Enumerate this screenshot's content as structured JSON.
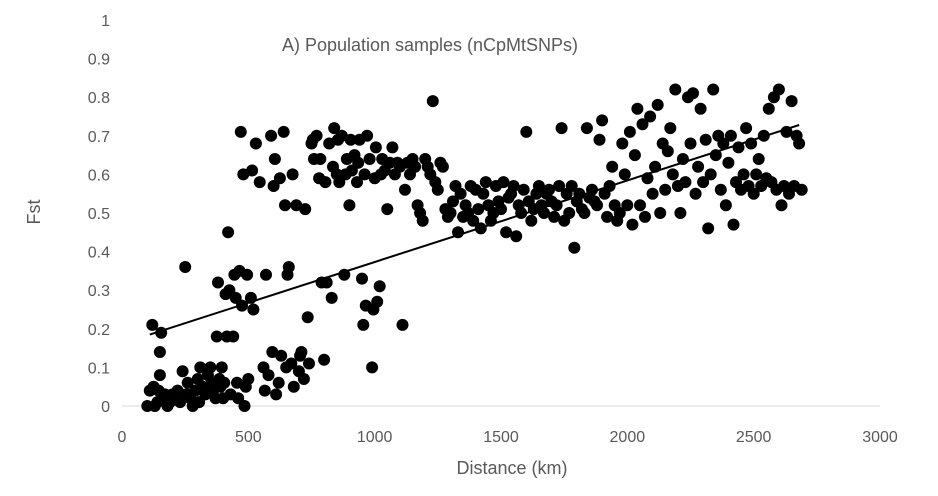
{
  "chart_data": {
    "type": "scatter",
    "title": "A) Population samples (nCpMtSNPs)",
    "xlabel": "Distance (km)",
    "ylabel": "Fst",
    "xlim": [
      0,
      3000
    ],
    "ylim": [
      0,
      1
    ],
    "x_ticks": [
      "0",
      "500",
      "1000",
      "1500",
      "2000",
      "2500",
      "3000"
    ],
    "y_ticks": [
      "0",
      "0.1",
      "0.2",
      "0.3",
      "0.4",
      "0.5",
      "0.6",
      "0.7",
      "0.8",
      "0.9",
      "1"
    ],
    "grid": false,
    "legend": "none",
    "marker_color": "#000000",
    "axis_color": "#d9d9d9",
    "trendline": {
      "type": "linear",
      "x": [
        110,
        2680
      ],
      "y": [
        0.185,
        0.728
      ]
    },
    "series": [
      {
        "points": [
          [
            100,
            0.0
          ],
          [
            110,
            0.04
          ],
          [
            120,
            0.21
          ],
          [
            125,
            0.05
          ],
          [
            130,
            0.0
          ],
          [
            140,
            0.01
          ],
          [
            145,
            0.04
          ],
          [
            150,
            0.08
          ],
          [
            150,
            0.14
          ],
          [
            155,
            0.19
          ],
          [
            160,
            0.02
          ],
          [
            170,
            0.03
          ],
          [
            180,
            0.0
          ],
          [
            190,
            0.01
          ],
          [
            200,
            0.03
          ],
          [
            210,
            0.02
          ],
          [
            220,
            0.04
          ],
          [
            230,
            0.01
          ],
          [
            240,
            0.09
          ],
          [
            250,
            0.36
          ],
          [
            255,
            0.03
          ],
          [
            260,
            0.06
          ],
          [
            270,
            0.02
          ],
          [
            280,
            0.0
          ],
          [
            290,
            0.04
          ],
          [
            300,
            0.07
          ],
          [
            305,
            0.01
          ],
          [
            310,
            0.1
          ],
          [
            320,
            0.05
          ],
          [
            330,
            0.03
          ],
          [
            340,
            0.08
          ],
          [
            350,
            0.1
          ],
          [
            355,
            0.06
          ],
          [
            360,
            0.04
          ],
          [
            370,
            0.02
          ],
          [
            375,
            0.18
          ],
          [
            380,
            0.32
          ],
          [
            385,
            0.07
          ],
          [
            390,
            0.05
          ],
          [
            395,
            0.1
          ],
          [
            400,
            0.02
          ],
          [
            405,
            0.06
          ],
          [
            410,
            0.29
          ],
          [
            415,
            0.18
          ],
          [
            420,
            0.45
          ],
          [
            425,
            0.3
          ],
          [
            430,
            0.03
          ],
          [
            440,
            0.18
          ],
          [
            445,
            0.34
          ],
          [
            450,
            0.28
          ],
          [
            455,
            0.06
          ],
          [
            460,
            0.02
          ],
          [
            465,
            0.35
          ],
          [
            470,
            0.71
          ],
          [
            475,
            0.26
          ],
          [
            480,
            0.6
          ],
          [
            485,
            0.0
          ],
          [
            490,
            0.05
          ],
          [
            495,
            0.34
          ],
          [
            500,
            0.07
          ],
          [
            510,
            0.28
          ],
          [
            515,
            0.61
          ],
          [
            520,
            0.25
          ],
          [
            530,
            0.68
          ],
          [
            545,
            0.58
          ],
          [
            560,
            0.1
          ],
          [
            565,
            0.04
          ],
          [
            570,
            0.34
          ],
          [
            580,
            0.08
          ],
          [
            590,
            0.7
          ],
          [
            595,
            0.14
          ],
          [
            600,
            0.57
          ],
          [
            605,
            0.64
          ],
          [
            610,
            0.03
          ],
          [
            620,
            0.06
          ],
          [
            625,
            0.59
          ],
          [
            630,
            0.13
          ],
          [
            640,
            0.71
          ],
          [
            645,
            0.52
          ],
          [
            650,
            0.1
          ],
          [
            655,
            0.34
          ],
          [
            660,
            0.36
          ],
          [
            670,
            0.11
          ],
          [
            675,
            0.6
          ],
          [
            680,
            0.05
          ],
          [
            690,
            0.52
          ],
          [
            700,
            0.09
          ],
          [
            705,
            0.13
          ],
          [
            710,
            0.14
          ],
          [
            720,
            0.07
          ],
          [
            725,
            0.51
          ],
          [
            735,
            0.23
          ],
          [
            740,
            0.11
          ],
          [
            750,
            0.68
          ],
          [
            755,
            0.69
          ],
          [
            760,
            0.64
          ],
          [
            770,
            0.7
          ],
          [
            780,
            0.59
          ],
          [
            785,
            0.64
          ],
          [
            790,
            0.32
          ],
          [
            800,
            0.12
          ],
          [
            805,
            0.58
          ],
          [
            810,
            0.32
          ],
          [
            820,
            0.68
          ],
          [
            830,
            0.28
          ],
          [
            835,
            0.62
          ],
          [
            840,
            0.72
          ],
          [
            850,
            0.6
          ],
          [
            855,
            0.69
          ],
          [
            860,
            0.58
          ],
          [
            870,
            0.7
          ],
          [
            880,
            0.34
          ],
          [
            885,
            0.6
          ],
          [
            890,
            0.64
          ],
          [
            900,
            0.52
          ],
          [
            905,
            0.69
          ],
          [
            910,
            0.61
          ],
          [
            920,
            0.65
          ],
          [
            930,
            0.58
          ],
          [
            935,
            0.63
          ],
          [
            940,
            0.69
          ],
          [
            950,
            0.33
          ],
          [
            955,
            0.21
          ],
          [
            960,
            0.6
          ],
          [
            965,
            0.26
          ],
          [
            970,
            0.7
          ],
          [
            980,
            0.64
          ],
          [
            990,
            0.1
          ],
          [
            995,
            0.25
          ],
          [
            1000,
            0.59
          ],
          [
            1005,
            0.67
          ],
          [
            1010,
            0.27
          ],
          [
            1020,
            0.31
          ],
          [
            1025,
            0.6
          ],
          [
            1030,
            0.64
          ],
          [
            1040,
            0.61
          ],
          [
            1050,
            0.51
          ],
          [
            1060,
            0.63
          ],
          [
            1070,
            0.67
          ],
          [
            1080,
            0.6
          ],
          [
            1090,
            0.63
          ],
          [
            1100,
            0.62
          ],
          [
            1110,
            0.21
          ],
          [
            1120,
            0.56
          ],
          [
            1130,
            0.63
          ],
          [
            1140,
            0.6
          ],
          [
            1150,
            0.64
          ],
          [
            1160,
            0.62
          ],
          [
            1170,
            0.52
          ],
          [
            1180,
            0.5
          ],
          [
            1190,
            0.48
          ],
          [
            1200,
            0.64
          ],
          [
            1210,
            0.62
          ],
          [
            1220,
            0.6
          ],
          [
            1230,
            0.79
          ],
          [
            1240,
            0.58
          ],
          [
            1250,
            0.56
          ],
          [
            1260,
            0.63
          ],
          [
            1270,
            0.62
          ],
          [
            1280,
            0.51
          ],
          [
            1290,
            0.49
          ],
          [
            1300,
            0.5
          ],
          [
            1310,
            0.53
          ],
          [
            1320,
            0.57
          ],
          [
            1330,
            0.45
          ],
          [
            1340,
            0.55
          ],
          [
            1350,
            0.49
          ],
          [
            1360,
            0.52
          ],
          [
            1370,
            0.5
          ],
          [
            1380,
            0.57
          ],
          [
            1390,
            0.48
          ],
          [
            1400,
            0.56
          ],
          [
            1410,
            0.51
          ],
          [
            1420,
            0.46
          ],
          [
            1430,
            0.55
          ],
          [
            1440,
            0.58
          ],
          [
            1450,
            0.52
          ],
          [
            1460,
            0.48
          ],
          [
            1470,
            0.5
          ],
          [
            1480,
            0.57
          ],
          [
            1490,
            0.53
          ],
          [
            1500,
            0.51
          ],
          [
            1510,
            0.58
          ],
          [
            1520,
            0.45
          ],
          [
            1530,
            0.54
          ],
          [
            1540,
            0.55
          ],
          [
            1550,
            0.57
          ],
          [
            1560,
            0.44
          ],
          [
            1570,
            0.52
          ],
          [
            1580,
            0.5
          ],
          [
            1590,
            0.56
          ],
          [
            1600,
            0.71
          ],
          [
            1610,
            0.53
          ],
          [
            1620,
            0.48
          ],
          [
            1630,
            0.51
          ],
          [
            1640,
            0.55
          ],
          [
            1650,
            0.57
          ],
          [
            1660,
            0.52
          ],
          [
            1670,
            0.5
          ],
          [
            1680,
            0.55
          ],
          [
            1690,
            0.56
          ],
          [
            1700,
            0.53
          ],
          [
            1710,
            0.49
          ],
          [
            1720,
            0.52
          ],
          [
            1730,
            0.57
          ],
          [
            1740,
            0.72
          ],
          [
            1750,
            0.48
          ],
          [
            1760,
            0.55
          ],
          [
            1770,
            0.5
          ],
          [
            1780,
            0.57
          ],
          [
            1790,
            0.41
          ],
          [
            1800,
            0.53
          ],
          [
            1810,
            0.55
          ],
          [
            1820,
            0.51
          ],
          [
            1830,
            0.5
          ],
          [
            1840,
            0.72
          ],
          [
            1850,
            0.54
          ],
          [
            1860,
            0.56
          ],
          [
            1870,
            0.53
          ],
          [
            1880,
            0.52
          ],
          [
            1890,
            0.69
          ],
          [
            1900,
            0.74
          ],
          [
            1910,
            0.55
          ],
          [
            1920,
            0.49
          ],
          [
            1930,
            0.57
          ],
          [
            1940,
            0.62
          ],
          [
            1950,
            0.52
          ],
          [
            1960,
            0.48
          ],
          [
            1970,
            0.5
          ],
          [
            1980,
            0.68
          ],
          [
            1990,
            0.6
          ],
          [
            2000,
            0.52
          ],
          [
            2010,
            0.71
          ],
          [
            2020,
            0.47
          ],
          [
            2030,
            0.65
          ],
          [
            2040,
            0.77
          ],
          [
            2050,
            0.52
          ],
          [
            2060,
            0.73
          ],
          [
            2070,
            0.49
          ],
          [
            2080,
            0.59
          ],
          [
            2090,
            0.75
          ],
          [
            2100,
            0.55
          ],
          [
            2110,
            0.62
          ],
          [
            2120,
            0.78
          ],
          [
            2130,
            0.5
          ],
          [
            2140,
            0.68
          ],
          [
            2150,
            0.56
          ],
          [
            2160,
            0.66
          ],
          [
            2170,
            0.72
          ],
          [
            2180,
            0.6
          ],
          [
            2190,
            0.82
          ],
          [
            2200,
            0.57
          ],
          [
            2210,
            0.5
          ],
          [
            2220,
            0.64
          ],
          [
            2230,
            0.58
          ],
          [
            2240,
            0.8
          ],
          [
            2250,
            0.68
          ],
          [
            2260,
            0.81
          ],
          [
            2270,
            0.55
          ],
          [
            2280,
            0.62
          ],
          [
            2290,
            0.77
          ],
          [
            2300,
            0.58
          ],
          [
            2310,
            0.69
          ],
          [
            2320,
            0.46
          ],
          [
            2330,
            0.6
          ],
          [
            2340,
            0.82
          ],
          [
            2350,
            0.65
          ],
          [
            2360,
            0.7
          ],
          [
            2370,
            0.56
          ],
          [
            2380,
            0.68
          ],
          [
            2390,
            0.52
          ],
          [
            2400,
            0.63
          ],
          [
            2410,
            0.7
          ],
          [
            2420,
            0.47
          ],
          [
            2430,
            0.58
          ],
          [
            2440,
            0.67
          ],
          [
            2450,
            0.56
          ],
          [
            2460,
            0.6
          ],
          [
            2470,
            0.72
          ],
          [
            2480,
            0.57
          ],
          [
            2490,
            0.68
          ],
          [
            2500,
            0.55
          ],
          [
            2510,
            0.6
          ],
          [
            2520,
            0.64
          ],
          [
            2530,
            0.57
          ],
          [
            2540,
            0.7
          ],
          [
            2550,
            0.59
          ],
          [
            2560,
            0.77
          ],
          [
            2570,
            0.58
          ],
          [
            2580,
            0.8
          ],
          [
            2590,
            0.56
          ],
          [
            2600,
            0.82
          ],
          [
            2610,
            0.52
          ],
          [
            2620,
            0.57
          ],
          [
            2630,
            0.71
          ],
          [
            2640,
            0.55
          ],
          [
            2650,
            0.79
          ],
          [
            2660,
            0.57
          ],
          [
            2670,
            0.7
          ],
          [
            2680,
            0.68
          ],
          [
            2690,
            0.56
          ]
        ]
      }
    ]
  }
}
